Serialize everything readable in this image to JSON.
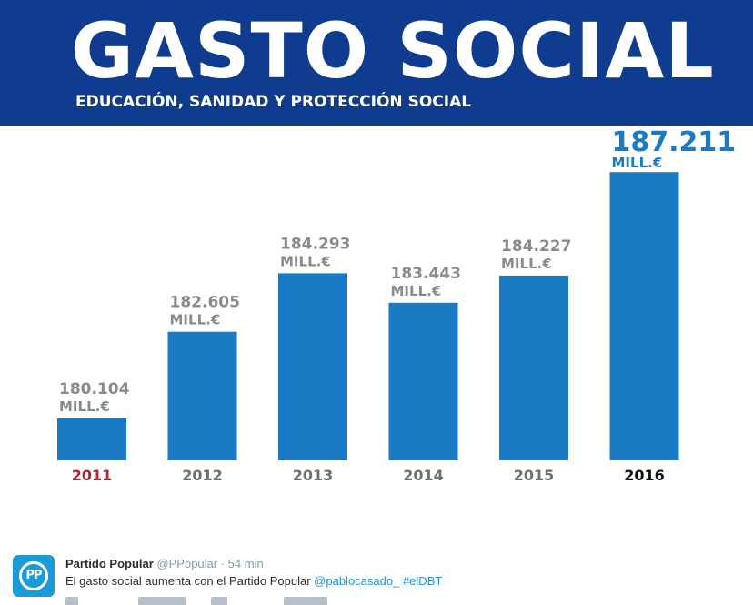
{
  "header": {
    "title": "GASTO SOCIAL",
    "subtitle": "EDUCACIÓN, SANIDAD Y PROTECCIÓN SOCIAL"
  },
  "colors": {
    "header_bg": "#0f3c8e",
    "bar": "#1a7ac4",
    "value_label": "#8a8a8a",
    "highlight_value": "#1a7ac4",
    "year_first": "#b0263b",
    "year_last": "#111111",
    "year_default": "#6f6f6f"
  },
  "chart_data": {
    "type": "bar",
    "title": "GASTO SOCIAL",
    "subtitle": "EDUCACIÓN, SANIDAD Y PROTECCIÓN SOCIAL",
    "categories": [
      "2011",
      "2012",
      "2013",
      "2014",
      "2015",
      "2016"
    ],
    "values": [
      180104,
      182605,
      184293,
      183443,
      184227,
      187211
    ],
    "value_labels": [
      "180.104",
      "182.605",
      "184.293",
      "183.443",
      "184.227",
      "187.211"
    ],
    "unit": "MILL.€",
    "xlabel": "",
    "ylabel": "",
    "grid": false,
    "legend": "none"
  },
  "tweet": {
    "author": "Partido Popular",
    "handle": "@PPopular",
    "time": "· 54 min",
    "avatar_text": "PP",
    "text": "El gasto social aumenta con el Partido Popular ",
    "mention": "@pablocasado_",
    "hashtag": "#elDBT"
  }
}
